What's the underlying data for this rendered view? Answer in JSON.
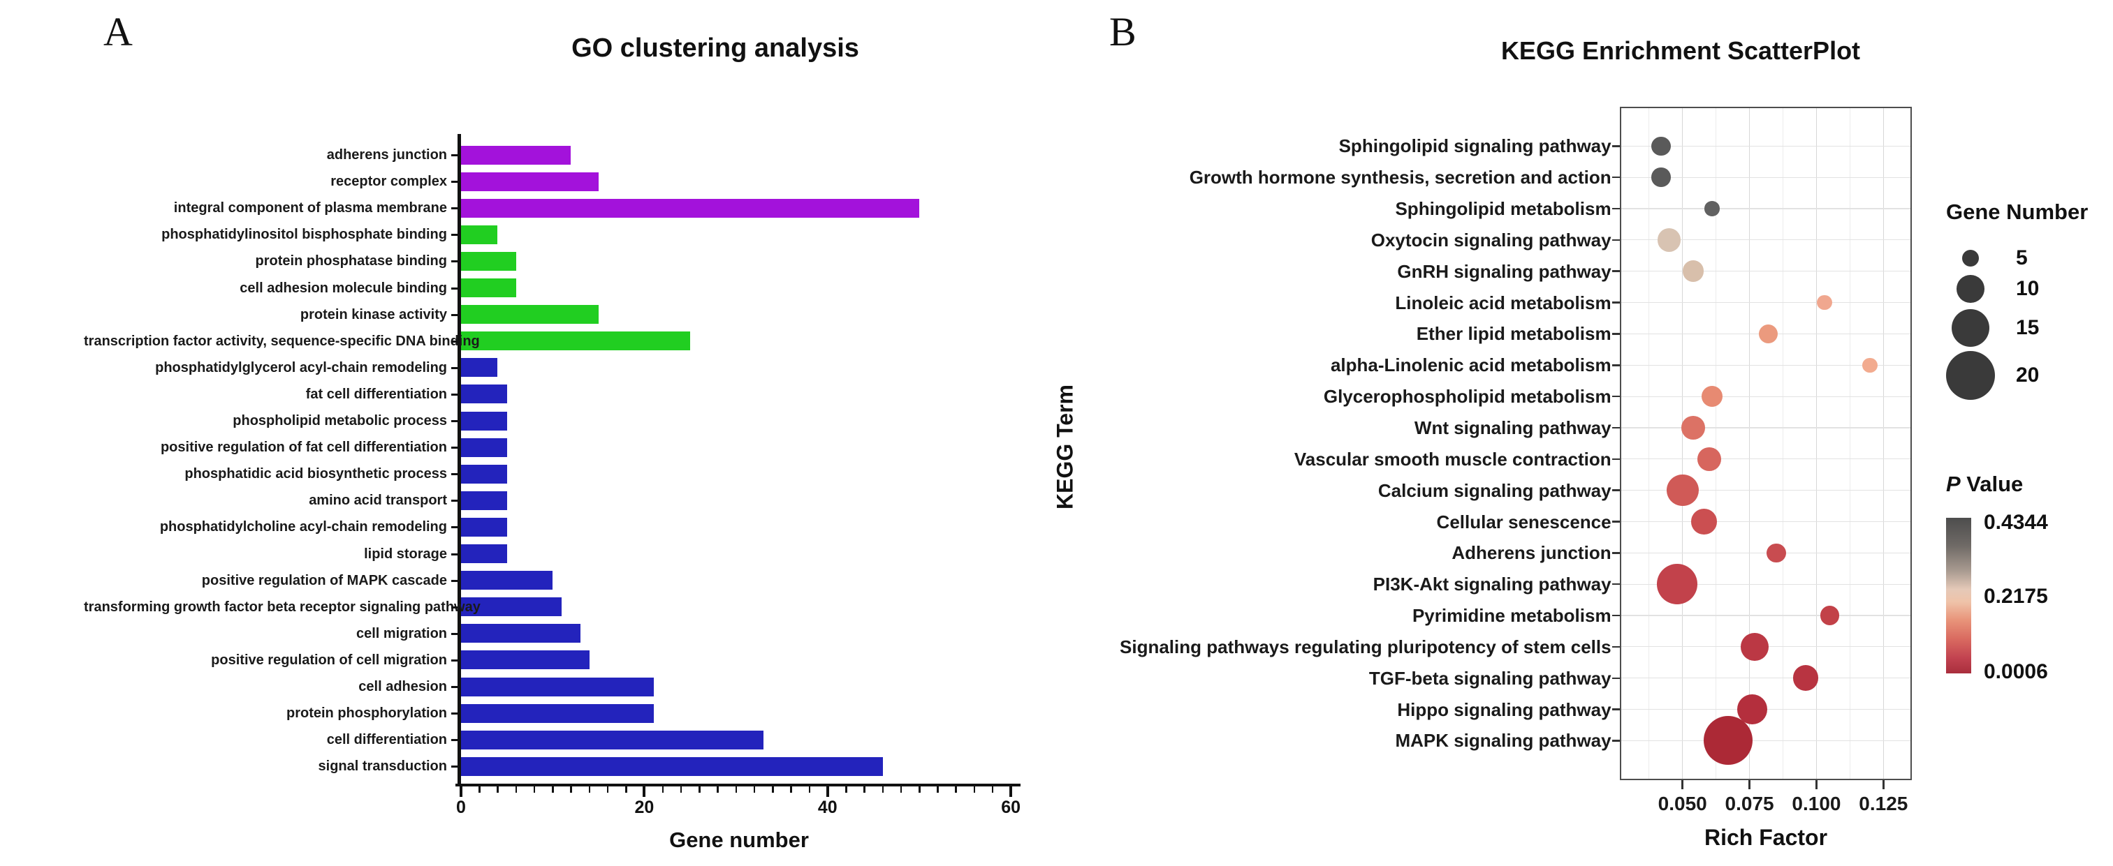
{
  "figure": {
    "panel_a_letter": "A",
    "panel_b_letter": "B"
  },
  "chart_data": [
    {
      "id": "go_bar_chart",
      "type": "bar",
      "orientation": "horizontal",
      "panel_label": "A",
      "title": "GO clustering analysis",
      "xlabel": "Gene number",
      "xlim": [
        0,
        60
      ],
      "x_ticks": [
        0,
        20,
        40,
        60
      ],
      "x_tick_labels": [
        "0",
        "20",
        "40",
        "60"
      ],
      "minor_tick_step": 2,
      "grid": false,
      "categories": [
        "adherens junction",
        "receptor complex",
        "integral component of plasma membrane",
        "phosphatidylinositol bisphosphate binding",
        "protein phosphatase binding",
        "cell adhesion molecule binding",
        "protein kinase activity",
        "transcription factor activity, sequence-specific DNA binding",
        "phosphatidylglycerol acyl-chain remodeling",
        "fat cell differentiation",
        "phospholipid metabolic process",
        "positive regulation of fat cell differentiation",
        "phosphatidic acid biosynthetic process",
        "amino acid transport",
        "phosphatidylcholine acyl-chain remodeling",
        "lipid storage",
        "positive regulation of MAPK cascade",
        "transforming growth factor beta receptor signaling pathway",
        "cell migration",
        "positive regulation of cell migration",
        "cell adhesion",
        "protein phosphorylation",
        "cell differentiation",
        "signal transduction"
      ],
      "values": [
        12,
        15,
        50,
        4,
        6,
        6,
        15,
        25,
        4,
        5,
        5,
        5,
        5,
        5,
        5,
        5,
        10,
        11,
        13,
        14,
        21,
        21,
        33,
        46
      ],
      "category_groups": [
        "cc",
        "cc",
        "cc",
        "mf",
        "mf",
        "mf",
        "mf",
        "mf",
        "bp",
        "bp",
        "bp",
        "bp",
        "bp",
        "bp",
        "bp",
        "bp",
        "bp",
        "bp",
        "bp",
        "bp",
        "bp",
        "bp",
        "bp",
        "bp"
      ],
      "group_colors": {
        "cc": "#a312db",
        "mf": "#21ce21",
        "bp": "#2323bc"
      }
    },
    {
      "id": "kegg_scatter",
      "type": "scatter",
      "panel_label": "B",
      "title": "KEGG Enrichment ScatterPlot",
      "xlabel": "Rich Factor",
      "ylabel": "KEGG Term",
      "xlim": [
        0.0265,
        0.1356
      ],
      "x_ticks": [
        0.05,
        0.075,
        0.1,
        0.125
      ],
      "x_tick_labels": [
        "0.050",
        "0.075",
        "0.100",
        "0.125"
      ],
      "x_minor_gridlines": [
        0.0375,
        0.0625,
        0.0875,
        0.1125
      ],
      "grid": true,
      "points": [
        {
          "term": "Sphingolipid signaling pathway",
          "rich_factor": 0.042,
          "gene_number": 6,
          "p_value_approx": 0.42,
          "color": "#5a5a5a"
        },
        {
          "term": "Growth hormone synthesis, secretion and action",
          "rich_factor": 0.042,
          "gene_number": 6,
          "p_value_approx": 0.42,
          "color": "#5a5a5a"
        },
        {
          "term": "Sphingolipid metabolism",
          "rich_factor": 0.061,
          "gene_number": 4,
          "p_value_approx": 0.4,
          "color": "#616161"
        },
        {
          "term": "Oxytocin signaling pathway",
          "rich_factor": 0.045,
          "gene_number": 8,
          "p_value_approx": 0.23,
          "color": "#d8c3b2"
        },
        {
          "term": "GnRH signaling pathway",
          "rich_factor": 0.054,
          "gene_number": 7,
          "p_value_approx": 0.22,
          "color": "#d8bfab"
        },
        {
          "term": "Linoleic acid metabolism",
          "rich_factor": 0.103,
          "gene_number": 4,
          "p_value_approx": 0.17,
          "color": "#f0a78f"
        },
        {
          "term": "Ether lipid metabolism",
          "rich_factor": 0.082,
          "gene_number": 6,
          "p_value_approx": 0.14,
          "color": "#eb9a7e"
        },
        {
          "term": "alpha-Linolenic acid metabolism",
          "rich_factor": 0.12,
          "gene_number": 4,
          "p_value_approx": 0.16,
          "color": "#f2ab8f"
        },
        {
          "term": "Glycerophospholipid metabolism",
          "rich_factor": 0.061,
          "gene_number": 7,
          "p_value_approx": 0.12,
          "color": "#e78a72"
        },
        {
          "term": "Wnt signaling pathway",
          "rich_factor": 0.054,
          "gene_number": 8,
          "p_value_approx": 0.09,
          "color": "#dc7265"
        },
        {
          "term": "Vascular smooth muscle contraction",
          "rich_factor": 0.06,
          "gene_number": 8,
          "p_value_approx": 0.08,
          "color": "#d7665e"
        },
        {
          "term": "Calcium signaling pathway",
          "rich_factor": 0.05,
          "gene_number": 12,
          "p_value_approx": 0.07,
          "color": "#d05a57"
        },
        {
          "term": "Cellular senescence",
          "rich_factor": 0.058,
          "gene_number": 9,
          "p_value_approx": 0.06,
          "color": "#cb4f51"
        },
        {
          "term": "Adherens junction",
          "rich_factor": 0.085,
          "gene_number": 6,
          "p_value_approx": 0.055,
          "color": "#c84c50"
        },
        {
          "term": "PI3K-Akt signaling pathway",
          "rich_factor": 0.048,
          "gene_number": 16,
          "p_value_approx": 0.045,
          "color": "#c2424b"
        },
        {
          "term": "Pyrimidine metabolism",
          "rich_factor": 0.105,
          "gene_number": 6,
          "p_value_approx": 0.045,
          "color": "#c24148"
        },
        {
          "term": "Signaling pathways regulating pluripotency of stem cells",
          "rich_factor": 0.077,
          "gene_number": 10,
          "p_value_approx": 0.03,
          "color": "#bb3844"
        },
        {
          "term": "TGF-beta signaling pathway",
          "rich_factor": 0.096,
          "gene_number": 9,
          "p_value_approx": 0.025,
          "color": "#b83441"
        },
        {
          "term": "Hippo signaling pathway",
          "rich_factor": 0.076,
          "gene_number": 11,
          "p_value_approx": 0.02,
          "color": "#b42f3d"
        },
        {
          "term": "MAPK signaling pathway",
          "rich_factor": 0.067,
          "gene_number": 20,
          "p_value_approx": 0.008,
          "color": "#ac2936"
        }
      ],
      "size_legend": {
        "title": "Gene Number",
        "sizes": [
          5,
          10,
          15,
          20
        ],
        "size_labels": [
          "5",
          "10",
          "15",
          "20"
        ],
        "dot_color": "#3a3a3a"
      },
      "color_legend": {
        "title_p": "P",
        "title_rest": " Value",
        "top_label": "0.4344",
        "mid_label": "0.2175",
        "bottom_label": "0.0006",
        "top_color": "#4d4d4d",
        "mid_color": "#e9cdbb",
        "bottom_color": "#a92e3d"
      }
    }
  ]
}
